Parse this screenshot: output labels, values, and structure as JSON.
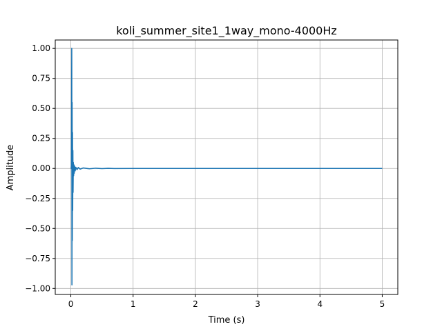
{
  "chart_data": {
    "type": "line",
    "title": "koli_summer_site1_1way_mono-4000Hz",
    "xlabel": "Time (s)",
    "ylabel": "Amplitude",
    "xlim": [
      -0.25,
      5.25
    ],
    "ylim": [
      -1.05,
      1.07
    ],
    "xticks": [
      0,
      1,
      2,
      3,
      4,
      5
    ],
    "xtick_labels": [
      "0",
      "1",
      "2",
      "3",
      "4",
      "5"
    ],
    "yticks": [
      -1.0,
      -0.75,
      -0.5,
      -0.25,
      0.0,
      0.25,
      0.5,
      0.75,
      1.0
    ],
    "ytick_labels": [
      "−1.00",
      "−0.75",
      "−0.50",
      "−0.25",
      "0.00",
      "0.25",
      "0.50",
      "0.75",
      "1.00"
    ],
    "grid": true,
    "legend": "none",
    "series": [
      {
        "color": "#1f77b4",
        "x": [
          0.0,
          0.005,
          0.01,
          0.015,
          0.018,
          0.021,
          0.024,
          0.027,
          0.03,
          0.033,
          0.036,
          0.04,
          0.045,
          0.05,
          0.055,
          0.06,
          0.07,
          0.08,
          0.1,
          0.12,
          0.15,
          0.2,
          0.3,
          0.4,
          0.5,
          0.6,
          0.7,
          1.0,
          2.0,
          3.0,
          4.0,
          5.0
        ],
        "y": [
          0.0,
          0.0,
          0.02,
          1.0,
          -0.97,
          0.55,
          -0.6,
          0.3,
          -0.35,
          0.15,
          -0.2,
          0.05,
          -0.06,
          0.03,
          -0.04,
          0.02,
          -0.02,
          0.01,
          -0.01,
          0.008,
          -0.006,
          0.004,
          -0.003,
          0.002,
          -0.0015,
          0.001,
          -0.0008,
          0.0,
          0.0,
          0.0,
          0.0,
          0.0
        ]
      }
    ]
  }
}
